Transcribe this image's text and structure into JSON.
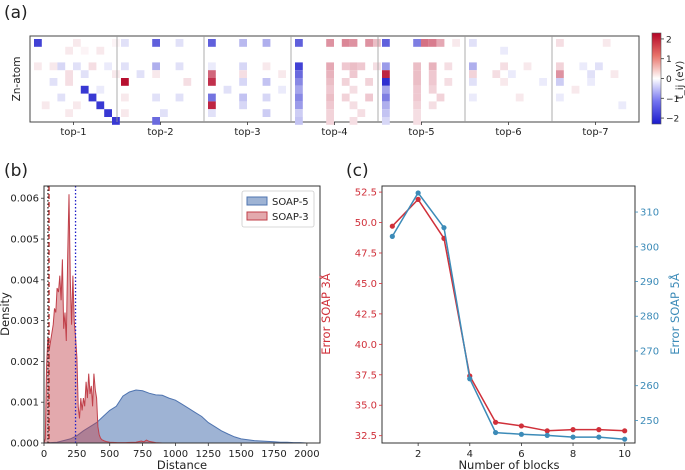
{
  "panels": {
    "a": {
      "label": "(a)",
      "ylabel": "Zn-atom",
      "groups": [
        "top-1",
        "top-2",
        "top-3",
        "top-4",
        "top-5",
        "top-6",
        "top-7"
      ],
      "colorbar": {
        "label": "t_ij (eV)",
        "ticks": [
          2,
          1,
          0,
          -1,
          -2
        ],
        "range": [
          -2.3,
          2.3
        ]
      },
      "heatmap": [
        [
          [
            0,
            0,
            -1.9
          ],
          [
            4,
            1,
            0.2
          ],
          [
            5,
            0,
            0.2
          ],
          [
            6,
            1,
            0.1
          ],
          [
            8,
            1,
            0.2
          ],
          [
            10,
            0,
            0.1
          ],
          [
            0,
            3,
            0.2
          ],
          [
            2,
            3,
            0.2
          ],
          [
            3,
            3,
            -0.4
          ],
          [
            4,
            4,
            0.3
          ],
          [
            5,
            3,
            -0.3
          ],
          [
            6,
            4,
            -0.3
          ],
          [
            7,
            3,
            0.3
          ],
          [
            9,
            3,
            -0.2
          ],
          [
            10,
            4,
            0.2
          ],
          [
            2,
            5,
            -0.3
          ],
          [
            4,
            5,
            0.3
          ],
          [
            6,
            6,
            0.2
          ],
          [
            3,
            7,
            -0.3
          ],
          [
            1,
            8,
            0.2
          ],
          [
            5,
            8,
            0.2
          ],
          [
            4,
            9,
            0.2
          ],
          [
            8,
            6,
            -0.2
          ],
          [
            6,
            6,
            -2
          ],
          [
            7,
            7,
            -2
          ],
          [
            8,
            8,
            -2
          ],
          [
            9,
            9,
            -2
          ],
          [
            10,
            10,
            -2
          ]
        ],
        [
          [
            0,
            0,
            -0.3
          ],
          [
            4,
            0,
            -1.6
          ],
          [
            7,
            0,
            -0.3
          ],
          [
            0,
            3,
            -0.3
          ],
          [
            4,
            3,
            -0.8
          ],
          [
            7,
            3,
            -0.3
          ],
          [
            2,
            4,
            -0.3
          ],
          [
            0,
            5,
            2.2
          ],
          [
            4,
            4,
            0.2
          ],
          [
            8,
            5,
            0.3
          ],
          [
            0,
            7,
            0.2
          ],
          [
            4,
            7,
            -0.3
          ],
          [
            7,
            7,
            -0.3
          ],
          [
            5,
            9,
            -0.3
          ],
          [
            0,
            9,
            0.2
          ],
          [
            4,
            10,
            -1.5
          ]
        ],
        [
          [
            0,
            0,
            -1.6
          ],
          [
            4,
            0,
            -0.7
          ],
          [
            7,
            0,
            -0.8
          ],
          [
            0,
            3,
            -0.2
          ],
          [
            4,
            3,
            -0.4
          ],
          [
            7,
            3,
            0.2
          ],
          [
            0,
            4,
            1.4
          ],
          [
            4,
            4,
            0.3
          ],
          [
            9,
            4,
            0.2
          ],
          [
            0,
            5,
            1.9
          ],
          [
            4,
            5,
            -0.4
          ],
          [
            7,
            5,
            -0.6
          ],
          [
            2,
            6,
            -0.3
          ],
          [
            9,
            6,
            -0.2
          ],
          [
            0,
            7,
            -1.4
          ],
          [
            4,
            7,
            -0.6
          ],
          [
            7,
            7,
            -0.4
          ],
          [
            0,
            8,
            2.0
          ],
          [
            4,
            8,
            -0.4
          ],
          [
            0,
            9,
            -0.3
          ],
          [
            7,
            9,
            -0.5
          ]
        ],
        [
          [
            0,
            0,
            -1.6
          ],
          [
            4,
            0,
            1.0
          ],
          [
            6,
            0,
            1.1
          ],
          [
            7,
            0,
            1.0
          ],
          [
            9,
            0,
            1.0
          ],
          [
            10,
            0,
            0.6
          ],
          [
            0,
            3,
            -1.9
          ],
          [
            4,
            3,
            0.8
          ],
          [
            6,
            3,
            0.5
          ],
          [
            7,
            3,
            0.6
          ],
          [
            8,
            3,
            0.5
          ],
          [
            10,
            3,
            0.3
          ],
          [
            0,
            4,
            -1.5
          ],
          [
            4,
            4,
            0.7
          ],
          [
            7,
            4,
            0.5
          ],
          [
            0,
            5,
            -1.2
          ],
          [
            4,
            5,
            0.6
          ],
          [
            6,
            5,
            0.4
          ],
          [
            9,
            5,
            0.4
          ],
          [
            0,
            6,
            -0.9
          ],
          [
            4,
            6,
            0.5
          ],
          [
            7,
            6,
            0.3
          ],
          [
            0,
            7,
            -1.2
          ],
          [
            4,
            7,
            0.6
          ],
          [
            6,
            7,
            0.4
          ],
          [
            9,
            7,
            0.5
          ],
          [
            0,
            8,
            -1.0
          ],
          [
            4,
            8,
            0.5
          ],
          [
            7,
            8,
            0.3
          ],
          [
            0,
            9,
            -0.5
          ],
          [
            4,
            9,
            0.4
          ],
          [
            8,
            9,
            0.3
          ],
          [
            0,
            10,
            -0.6
          ],
          [
            4,
            10,
            0.4
          ],
          [
            7,
            10,
            0.3
          ]
        ],
        [
          [
            0,
            0,
            -1.6
          ],
          [
            4,
            0,
            -1.3
          ],
          [
            5,
            0,
            1.3
          ],
          [
            6,
            0,
            1.2
          ],
          [
            7,
            0,
            0.8
          ],
          [
            9,
            0,
            0.2
          ],
          [
            0,
            3,
            -1.0
          ],
          [
            4,
            3,
            0.6
          ],
          [
            6,
            3,
            0.7
          ],
          [
            8,
            3,
            0.3
          ],
          [
            0,
            4,
            2.0
          ],
          [
            4,
            4,
            0.6
          ],
          [
            6,
            4,
            0.5
          ],
          [
            0,
            5,
            -2.1
          ],
          [
            4,
            5,
            0.6
          ],
          [
            6,
            5,
            0.5
          ],
          [
            8,
            5,
            0.3
          ],
          [
            0,
            6,
            -0.9
          ],
          [
            4,
            6,
            0.5
          ],
          [
            6,
            6,
            0.4
          ],
          [
            0,
            7,
            -1.3
          ],
          [
            4,
            7,
            0.5
          ],
          [
            7,
            7,
            0.4
          ],
          [
            0,
            8,
            -0.8
          ],
          [
            4,
            8,
            0.4
          ],
          [
            6,
            8,
            0.3
          ],
          [
            0,
            9,
            -0.6
          ],
          [
            4,
            9,
            0.3
          ],
          [
            0,
            10,
            -0.4
          ],
          [
            4,
            10,
            0.3
          ]
        ],
        [
          [
            0,
            0,
            -0.3
          ],
          [
            4,
            1,
            -0.2
          ],
          [
            0,
            3,
            -0.8
          ],
          [
            4,
            3,
            0.3
          ],
          [
            7,
            3,
            0.2
          ],
          [
            0,
            4,
            0.4
          ],
          [
            3,
            4,
            0.3
          ],
          [
            5,
            4,
            -0.2
          ],
          [
            0,
            5,
            -0.3
          ],
          [
            4,
            5,
            0.2
          ],
          [
            9,
            5,
            -0.2
          ],
          [
            0,
            7,
            -0.2
          ],
          [
            6,
            7,
            0.2
          ]
        ],
        [
          [
            0,
            0,
            0.3
          ],
          [
            6,
            0,
            0.2
          ],
          [
            0,
            3,
            0.4
          ],
          [
            3,
            3,
            -0.2
          ],
          [
            5,
            3,
            -0.3
          ],
          [
            0,
            4,
            1.0
          ],
          [
            4,
            4,
            -0.3
          ],
          [
            7,
            4,
            0.2
          ],
          [
            0,
            5,
            -0.5
          ],
          [
            4,
            5,
            -0.2
          ],
          [
            2,
            6,
            0.2
          ],
          [
            0,
            7,
            -0.2
          ],
          [
            8,
            8,
            -0.2
          ]
        ]
      ]
    },
    "b": {
      "label": "(b)",
      "xlabel": "Distance",
      "ylabel": "Density",
      "xlim": [
        0,
        2100
      ],
      "ylim": [
        0,
        0.0063
      ],
      "xticks": [
        0,
        250,
        500,
        750,
        1000,
        1250,
        1500,
        1750,
        2000
      ],
      "yticks": [
        0.0,
        0.001,
        0.002,
        0.003,
        0.004,
        0.005,
        0.006
      ],
      "yticklabels": [
        "0.000",
        "0.001",
        "0.002",
        "0.003",
        "0.004",
        "0.005",
        "0.006"
      ],
      "vlines": [
        {
          "x": 38,
          "color": "#b22222",
          "style": "dashed"
        },
        {
          "x": 30,
          "color": "#2f2f2f",
          "style": "dotted"
        },
        {
          "x": 240,
          "color": "#1f1fc8",
          "style": "dotted"
        }
      ],
      "series": [
        {
          "name": "SOAP-5",
          "color": "#4f74b0",
          "x": [
            0,
            100,
            200,
            250,
            300,
            350,
            400,
            450,
            500,
            550,
            600,
            650,
            700,
            750,
            800,
            850,
            900,
            950,
            1000,
            1050,
            1100,
            1150,
            1200,
            1250,
            1300,
            1350,
            1400,
            1450,
            1500,
            1550,
            1600,
            1650,
            1700,
            1750,
            1800,
            1850,
            1900,
            1950,
            2000,
            2050
          ],
          "y": [
            0,
            2e-05,
            0.0001,
            0.00018,
            0.0003,
            0.0004,
            0.0005,
            0.00065,
            0.0008,
            0.0009,
            0.00115,
            0.00125,
            0.0013,
            0.00128,
            0.00122,
            0.00118,
            0.00117,
            0.0011,
            0.00105,
            0.00095,
            0.00085,
            0.00075,
            0.00065,
            0.0005,
            0.0004,
            0.0003,
            0.00022,
            0.00015,
            0.0001,
            8e-05,
            6e-05,
            5e-05,
            4e-05,
            3e-05,
            2e-05,
            2e-05,
            1e-05,
            1e-05,
            0,
            0
          ]
        },
        {
          "name": "SOAP-3",
          "color": "#c0404a",
          "x": [
            0,
            10,
            20,
            30,
            40,
            50,
            60,
            70,
            80,
            90,
            100,
            110,
            120,
            130,
            140,
            150,
            160,
            170,
            180,
            190,
            200,
            210,
            220,
            230,
            240,
            250,
            260,
            270,
            280,
            290,
            300,
            310,
            320,
            330,
            340,
            350,
            360,
            370,
            380,
            390,
            400,
            410,
            420,
            430,
            440,
            460,
            480,
            500,
            560,
            620,
            700,
            740,
            760,
            780,
            800,
            850,
            900
          ],
          "y": [
            0,
            0.0001,
            0.0019,
            0.0026,
            0.0023,
            0.0025,
            0.0027,
            0.0029,
            0.0033,
            0.0032,
            0.0038,
            0.0037,
            0.0041,
            0.0035,
            0.0045,
            0.0028,
            0.0032,
            0.0025,
            0.0046,
            0.0061,
            0.004,
            0.0029,
            0.0041,
            0.003,
            0.0026,
            0.0021,
            0.0009,
            0.0006,
            0.0011,
            0.0008,
            0.0011,
            0.0009,
            0.0015,
            0.0011,
            0.0017,
            0.0012,
            0.0014,
            0.0009,
            0.0017,
            0.0013,
            0.0011,
            0.0004,
            0.0002,
            0.00012,
            8e-05,
            5e-05,
            3e-05,
            2e-05,
            1e-05,
            1e-05,
            2e-05,
            5e-05,
            3e-05,
            7e-05,
            4e-05,
            1e-05,
            0
          ]
        }
      ]
    },
    "c": {
      "label": "(c)",
      "xlabel": "Number of blocks",
      "ylabel_left": "Error SOAP 3Å",
      "ylabel_right": "Error SOAP 5Å",
      "xlim": [
        0.6,
        10.4
      ],
      "xticks": [
        2,
        4,
        6,
        8,
        10
      ],
      "ylim_left": [
        31.9,
        53.0
      ],
      "yticks_left": [
        32.5,
        35.0,
        37.5,
        40.0,
        42.5,
        45.0,
        47.5,
        50.0,
        52.5
      ],
      "yticklabels_left": [
        "32.5",
        "35.0",
        "37.5",
        "40.0",
        "42.5",
        "45.0",
        "47.5",
        "50.0",
        "52.5"
      ],
      "ylim_right": [
        243.5,
        317.5
      ],
      "yticks_right": [
        250,
        260,
        270,
        280,
        290,
        300,
        310
      ],
      "color_left": "#d0303a",
      "color_right": "#3c8bb8",
      "series": [
        {
          "name": "SOAP 3Å",
          "axis": "left",
          "x": [
            1,
            2,
            3,
            4,
            5,
            6,
            7,
            8,
            9,
            10
          ],
          "y": [
            49.7,
            51.9,
            48.7,
            37.4,
            33.6,
            33.3,
            32.9,
            33.0,
            33.0,
            32.9
          ]
        },
        {
          "name": "SOAP 5Å",
          "axis": "right",
          "x": [
            1,
            2,
            3,
            4,
            5,
            6,
            7,
            8,
            9,
            10
          ],
          "y": [
            303.0,
            315.5,
            305.5,
            262.0,
            246.5,
            246.0,
            245.7,
            245.2,
            245.2,
            244.6
          ]
        }
      ]
    }
  }
}
